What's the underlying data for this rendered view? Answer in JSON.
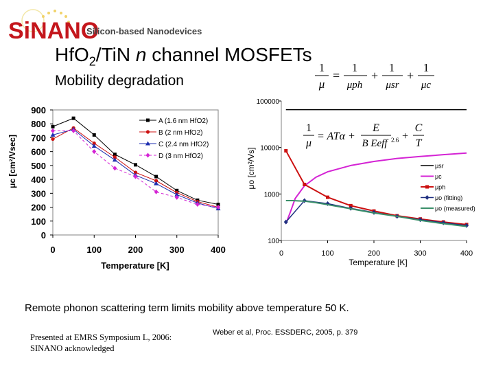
{
  "header": {
    "logo_text": "SiNANO",
    "logo_tagline": "Silicon-based Nanodevices",
    "title_part1": "HfO",
    "title_sub": "2",
    "title_part2": "/TiN ",
    "title_italic": "n",
    "title_part3": " channel MOSFETs",
    "subtitle": "Mobility degradation"
  },
  "equations": {
    "eq1_lhs": "1",
    "eq1_lhs_den": "μ",
    "eq1_terms": [
      "μph",
      "μsr",
      "μc"
    ],
    "eq2_lhs": "1",
    "eq2_lhs_den": "μ",
    "eq2_rhs": "= ATα +",
    "eq2_frac_num": "E",
    "eq2_frac_den": "B Eeff",
    "eq2_exp": "2.6",
    "eq2_last_num": "C",
    "eq2_last_den": "T"
  },
  "colors": {
    "series_black": "#000000",
    "series_red": "#cc1111",
    "series_blue": "#1f2fb0",
    "series_magenta": "#d423d4",
    "green": "#3a8f6a",
    "darkblue": "#1f2f80"
  },
  "chart_data": [
    {
      "type": "line",
      "title": "",
      "xlabel": "Temperature [K]",
      "ylabel": "μc [cm²/Vsec]",
      "xlim": [
        0,
        400
      ],
      "ylim": [
        0,
        900
      ],
      "xticks": [
        "0",
        "100",
        "200",
        "300",
        "400"
      ],
      "yticks": [
        "0",
        "100",
        "200",
        "300",
        "400",
        "500",
        "600",
        "700",
        "800",
        "900"
      ],
      "x": [
        0,
        50,
        100,
        150,
        200,
        250,
        300,
        350,
        400
      ],
      "series": [
        {
          "name": "A (1.6 nm HfO2)",
          "values": [
            780,
            840,
            720,
            580,
            505,
            420,
            320,
            250,
            220
          ]
        },
        {
          "name": "B (2 nm HfO2)",
          "values": [
            690,
            770,
            660,
            560,
            450,
            390,
            305,
            240,
            200
          ]
        },
        {
          "name": "C (2.4 nm HfO2)",
          "values": [
            720,
            760,
            640,
            540,
            430,
            370,
            290,
            230,
            190
          ]
        },
        {
          "name": "D (3 nm HfO2)",
          "values": [
            750,
            750,
            600,
            480,
            420,
            310,
            270,
            220,
            200
          ]
        }
      ]
    },
    {
      "type": "line",
      "title": "",
      "xlabel": "Temperature [K]",
      "ylabel": "μo [cm²/Vs]",
      "xlim": [
        0,
        400
      ],
      "ylim": [
        100,
        100000
      ],
      "yscale": "log",
      "xticks": [
        "0",
        "100",
        "200",
        "300",
        "400"
      ],
      "yticks": [
        "100",
        "1000",
        "10000",
        "100000"
      ],
      "series": [
        {
          "name": "μsr",
          "x": [
            10,
            400
          ],
          "values": [
            65000,
            65000
          ]
        },
        {
          "name": "μc",
          "x": [
            10,
            20,
            30,
            50,
            75,
            100,
            150,
            200,
            250,
            300,
            350,
            400
          ],
          "values": [
            230,
            420,
            800,
            1500,
            2300,
            3000,
            4100,
            5000,
            5800,
            6400,
            7000,
            7600
          ]
        },
        {
          "name": "μph",
          "x": [
            10,
            50,
            100,
            150,
            200,
            250,
            300,
            350,
            400
          ],
          "values": [
            8500,
            1600,
            850,
            560,
            430,
            340,
            290,
            250,
            220
          ]
        },
        {
          "name": "μo (fitting)",
          "x": [
            10,
            50,
            100,
            150,
            200,
            250,
            300,
            350,
            400
          ],
          "values": [
            250,
            720,
            620,
            490,
            400,
            330,
            280,
            240,
            210
          ]
        },
        {
          "name": "μo (measured)",
          "x": [
            10,
            25,
            50,
            75,
            100,
            150,
            200,
            250,
            300,
            350,
            400
          ],
          "values": [
            720,
            720,
            700,
            650,
            590,
            480,
            390,
            330,
            270,
            230,
            200
          ]
        }
      ]
    }
  ],
  "footer": {
    "note": "Remote phonon scattering term limits mobility above temperature 50 K.",
    "presented_line1": "Presented at EMRS Symposium L, 2006:",
    "presented_line2": "SINANO acknowledged",
    "reference": "Weber et al, Proc. ESSDERC, 2005, p. 379"
  }
}
